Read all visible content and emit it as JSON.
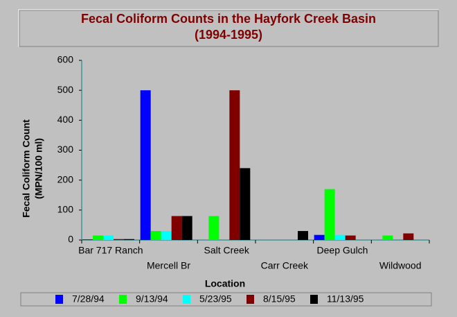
{
  "chart_data": {
    "type": "bar",
    "title": "Fecal Coliform Counts in the Hayfork Creek Basin",
    "subtitle": "(1994-1995)",
    "ylabel": [
      "Fecal Coliform Count",
      "(MPN/100 ml)"
    ],
    "xlabel": "Location",
    "categories": [
      "Bar 717 Ranch",
      "Mercell Br",
      "Salt Creek",
      "Carr Creek",
      "Deep Gulch",
      "Wildwood"
    ],
    "series": [
      {
        "name": "7/28/94",
        "color": "#0000ff",
        "values": [
          2,
          500,
          null,
          null,
          17,
          null
        ]
      },
      {
        "name": "9/13/94",
        "color": "#00ff00",
        "values": [
          15,
          30,
          80,
          null,
          170,
          15
        ]
      },
      {
        "name": "5/23/95",
        "color": "#00ffff",
        "values": [
          15,
          30,
          null,
          null,
          17,
          null
        ]
      },
      {
        "name": "8/15/95",
        "color": "#800000",
        "values": [
          3,
          80,
          500,
          null,
          15,
          22
        ]
      },
      {
        "name": "11/13/95",
        "color": "#000000",
        "values": [
          3,
          80,
          240,
          30,
          null,
          null
        ]
      }
    ],
    "ylim": [
      0,
      600
    ],
    "yticks": [
      0,
      100,
      200,
      300,
      400,
      500,
      600
    ]
  }
}
